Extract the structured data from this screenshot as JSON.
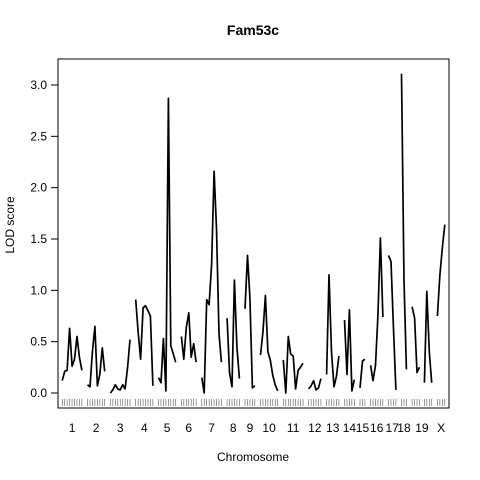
{
  "chart_data": {
    "type": "line",
    "title": "Fam53c",
    "xlabel": "Chromosome",
    "ylabel": "LOD score",
    "ylim": [
      -0.1,
      3.25
    ],
    "yticks": [
      0.0,
      0.5,
      1.0,
      1.5,
      2.0,
      2.5,
      3.0
    ],
    "ytick_labels": [
      "0.0",
      "0.5",
      "1.0",
      "1.5",
      "2.0",
      "2.5",
      "3.0"
    ],
    "grid": false,
    "legend": "none",
    "line_color": "#000000",
    "chromosomes": [
      {
        "label": "1",
        "segments": [
          [
            0.12,
            0.21,
            0.22,
            0.63,
            0.26,
            0.33,
            0.55,
            0.35,
            0.22
          ]
        ]
      },
      {
        "label": "2",
        "segments": [
          [
            0.08,
            0.06,
            0.4,
            0.65,
            0.07,
            0.18,
            0.44,
            0.21
          ]
        ]
      },
      {
        "label": "3",
        "segments": [
          [
            0.0,
            0.03,
            0.08,
            0.04,
            0.03,
            0.08,
            0.04,
            0.25,
            0.52
          ]
        ]
      },
      {
        "label": "4",
        "segments": [
          [
            0.91,
            0.6,
            0.33,
            0.83,
            0.85,
            0.8,
            0.75,
            0.07
          ]
        ]
      },
      {
        "label": "5",
        "segments": [
          [
            0.15,
            0.1,
            0.53,
            0.02,
            2.87,
            0.46,
            0.38,
            0.3
          ]
        ]
      },
      {
        "label": "6",
        "segments": [
          [
            0.55,
            0.33,
            0.64,
            0.78,
            0.35,
            0.48,
            0.3
          ]
        ]
      },
      {
        "label": "7",
        "segments": [
          [
            0.15,
            0.0,
            0.91,
            0.86,
            1.25,
            2.16,
            1.6,
            0.58,
            0.3
          ]
        ]
      },
      {
        "label": "8",
        "segments": [
          [
            0.73,
            0.2,
            0.06,
            1.1,
            0.45,
            0.14
          ]
        ]
      },
      {
        "label": "9",
        "segments": [
          [
            0.82,
            1.34,
            0.93,
            0.05,
            0.07
          ]
        ]
      },
      {
        "label": "10",
        "segments": [
          [
            0.37,
            0.6,
            0.95,
            0.4,
            0.32,
            0.17,
            0.08,
            0.02
          ]
        ]
      },
      {
        "label": "11",
        "segments": [
          [
            0.32,
            0.0,
            0.55,
            0.38,
            0.36,
            0.04,
            0.22,
            0.25,
            0.29
          ]
        ]
      },
      {
        "label": "12",
        "segments": [
          [
            0.04,
            0.07,
            0.12,
            0.03,
            0.05,
            0.14
          ]
        ]
      },
      {
        "label": "13",
        "segments": [
          [
            0.18,
            1.15,
            0.4,
            0.06,
            0.16,
            0.36
          ]
        ]
      },
      {
        "label": "14",
        "segments": [
          [
            0.71,
            0.18,
            0.81,
            0.02,
            0.13
          ]
        ]
      },
      {
        "label": "15",
        "segments": [
          [
            0.05,
            0.31,
            0.33
          ]
        ]
      },
      {
        "label": "16",
        "segments": [
          [
            0.27,
            0.12,
            0.27,
            0.75,
            1.51,
            0.74
          ]
        ]
      },
      {
        "label": "17",
        "segments": [
          [
            1.34,
            1.28,
            0.65,
            0.03
          ]
        ]
      },
      {
        "label": "18",
        "segments": [
          [
            3.11,
            1.1,
            0.23
          ]
        ]
      },
      {
        "label": "19",
        "segments": [
          [
            0.84,
            0.73,
            0.2,
            0.25
          ],
          [
            0.1,
            0.99,
            0.4,
            0.1
          ]
        ]
      },
      {
        "label": "X",
        "segments": [
          [
            0.75,
            1.15,
            1.41,
            1.64
          ]
        ]
      }
    ]
  }
}
